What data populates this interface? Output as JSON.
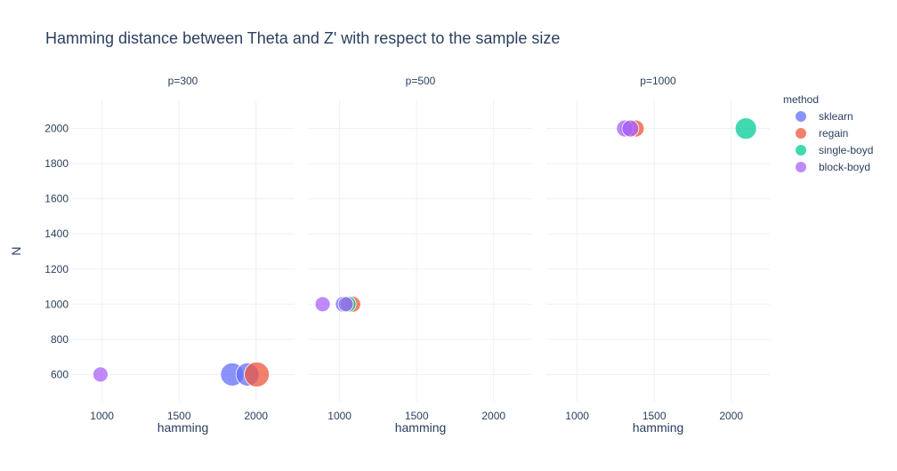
{
  "chart_data": {
    "type": "scatter",
    "title": "Hamming distance between Theta and Z' with respect to the sample size",
    "xlabel": "hamming",
    "ylabel": "N",
    "xlim": [
      800,
      2250
    ],
    "ylim": [
      445,
      2160
    ],
    "xticks": [
      1000,
      1500,
      2000
    ],
    "yticks": [
      600,
      800,
      1000,
      1200,
      1400,
      1600,
      1800,
      2000
    ],
    "grid": true,
    "legend": {
      "title": "method",
      "placement": "right"
    },
    "facets": [
      "p=300",
      "p=500",
      "p=1000"
    ],
    "series": [
      {
        "name": "sklearn",
        "color": "#636efa",
        "points": [
          {
            "facet": "p=300",
            "x": 1845,
            "y": 600,
            "size": 26
          },
          {
            "facet": "p=300",
            "x": 1945,
            "y": 600,
            "size": 26
          },
          {
            "facet": "p=500",
            "x": 1025,
            "y": 1000,
            "size": 18
          },
          {
            "facet": "p=1000",
            "x": 1330,
            "y": 2000,
            "size": 18
          }
        ]
      },
      {
        "name": "regain",
        "color": "#ef553b",
        "points": [
          {
            "facet": "p=300",
            "x": 2005,
            "y": 600,
            "size": 28
          },
          {
            "facet": "p=500",
            "x": 1085,
            "y": 1000,
            "size": 18
          },
          {
            "facet": "p=1000",
            "x": 1380,
            "y": 2000,
            "size": 19
          }
        ]
      },
      {
        "name": "single-boyd",
        "color": "#00cc96",
        "points": [
          {
            "facet": "p=500",
            "x": 1055,
            "y": 1000,
            "size": 18
          },
          {
            "facet": "p=1000",
            "x": 2095,
            "y": 2000,
            "size": 24
          }
        ]
      },
      {
        "name": "block-boyd",
        "color": "#ab63fa",
        "points": [
          {
            "facet": "p=300",
            "x": 990,
            "y": 600,
            "size": 17
          },
          {
            "facet": "p=500",
            "x": 890,
            "y": 1000,
            "size": 17
          },
          {
            "facet": "p=500",
            "x": 1040,
            "y": 1000,
            "size": 17
          },
          {
            "facet": "p=1000",
            "x": 1310,
            "y": 2000,
            "size": 19
          },
          {
            "facet": "p=1000",
            "x": 1345,
            "y": 2000,
            "size": 19
          }
        ]
      }
    ]
  }
}
